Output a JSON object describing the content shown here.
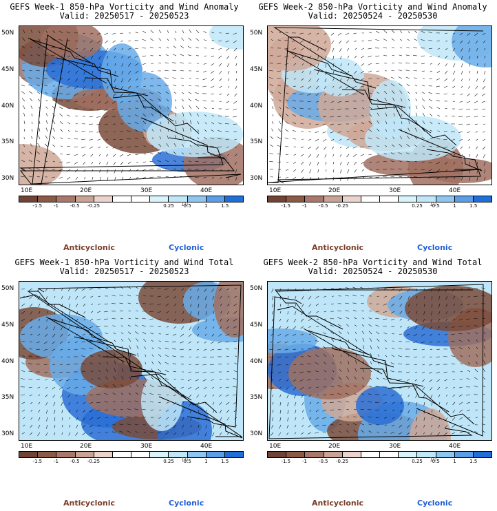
{
  "panels": [
    {
      "title": "GEFS Week-1 850-hPa Vorticity and Wind Anomaly",
      "valid": "Valid: 20250517 - 20250523",
      "variant": 1
    },
    {
      "title": "GEFS Week-2 850-hPa Vorticity and Wind Anomaly",
      "valid": "Valid: 20250524 - 20250530",
      "variant": 2
    },
    {
      "title": "GEFS Week-1 850-hPa Vorticity and Wind Total",
      "valid": "Valid: 20250517 - 20250523",
      "variant": 3
    },
    {
      "title": "GEFS Week-2 850-hPa Vorticity and Wind Total",
      "valid": "Valid: 20250524 - 20250530",
      "variant": 4
    }
  ],
  "lat_labels": [
    "50N",
    "45N",
    "40N",
    "35N",
    "30N"
  ],
  "lon_labels": [
    "10E",
    "20E",
    "30E",
    "40E"
  ],
  "colorbar": {
    "colors": [
      "#6f4434",
      "#8a5a47",
      "#a8786a",
      "#c9a396",
      "#ead3cc",
      "#ffffff",
      "#ffffff",
      "#d9f3fb",
      "#bfe7f7",
      "#8ec6ef",
      "#5a9ee8",
      "#1f6fd9"
    ],
    "tick_labels": [
      "-1.5",
      "-1",
      "-0.5",
      "-0.25",
      "0.25",
      "0.5",
      "1",
      "1.5"
    ],
    "unit_label": "10",
    "unit_label_pos": "under 1"
  },
  "legend": {
    "anticyclonic": "Anticyclonic",
    "cyclonic": "Cyclonic"
  },
  "colors": {
    "brown_dark": "#7a4b3a",
    "brown": "#a07060",
    "brown_light": "#cfa898",
    "blue_light": "#bfe6f8",
    "blue": "#69abe9",
    "blue_dark": "#2a6fd6",
    "anticyclonic_text": "#7a3d2a",
    "cyclonic_text": "#1f5fd6"
  }
}
